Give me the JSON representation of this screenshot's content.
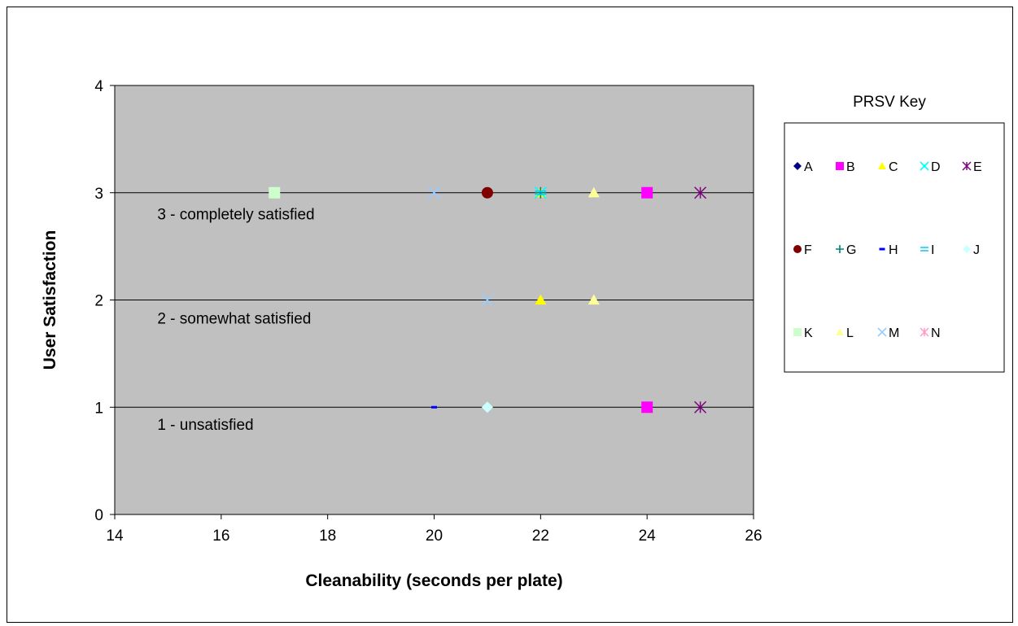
{
  "chart_data": {
    "type": "scatter",
    "title": "",
    "xlabel": "Cleanability (seconds per plate)",
    "ylabel": "User Satisfaction",
    "xlim": [
      14,
      26
    ],
    "ylim": [
      0,
      4
    ],
    "xticks": [
      14,
      16,
      18,
      20,
      22,
      24,
      26
    ],
    "yticks": [
      0,
      1,
      2,
      3,
      4
    ],
    "grid": "horizontal major",
    "plot_area_color": "#c0c0c0",
    "annotations": [
      {
        "text": "3 - completely satisfied",
        "x": 14.8,
        "y": 2.75
      },
      {
        "text": "2 - somewhat satisfied",
        "x": 14.8,
        "y": 1.78
      },
      {
        "text": "1 - unsatisfied",
        "x": 14.8,
        "y": 0.79
      }
    ],
    "legend": {
      "title": "PRSV Key",
      "placement": "right"
    },
    "series": [
      {
        "name": "A",
        "marker": "diamond",
        "color": "#000080",
        "points": []
      },
      {
        "name": "B",
        "marker": "square",
        "color": "#ff00ff",
        "points": [
          [
            24,
            3
          ],
          [
            24,
            1
          ]
        ]
      },
      {
        "name": "C",
        "marker": "triangle",
        "color": "#ffff00",
        "points": [
          [
            22,
            3
          ],
          [
            22,
            2
          ]
        ]
      },
      {
        "name": "D",
        "marker": "x",
        "color": "#00ffff",
        "points": [
          [
            22,
            3
          ]
        ]
      },
      {
        "name": "E",
        "marker": "asterisk",
        "color": "#800080",
        "points": [
          [
            25,
            3
          ],
          [
            25,
            1
          ]
        ]
      },
      {
        "name": "F",
        "marker": "circle",
        "color": "#800000",
        "points": [
          [
            21,
            3
          ]
        ]
      },
      {
        "name": "G",
        "marker": "plus",
        "color": "#008080",
        "points": [
          [
            22,
            3
          ]
        ]
      },
      {
        "name": "H",
        "marker": "dash",
        "color": "#0000ff",
        "points": [
          [
            20,
            1
          ]
        ]
      },
      {
        "name": "I",
        "marker": "double-dash",
        "color": "#00ccff",
        "points": [
          [
            22,
            3
          ]
        ]
      },
      {
        "name": "J",
        "marker": "diamond",
        "color": "#ccffff",
        "points": [
          [
            21,
            1
          ]
        ]
      },
      {
        "name": "K",
        "marker": "square",
        "color": "#ccffcc",
        "points": [
          [
            17,
            3
          ]
        ]
      },
      {
        "name": "L",
        "marker": "triangle",
        "color": "#ffff99",
        "points": [
          [
            23,
            3
          ],
          [
            23,
            2
          ]
        ]
      },
      {
        "name": "M",
        "marker": "x",
        "color": "#99ccff",
        "points": [
          [
            20,
            3
          ],
          [
            21,
            2
          ]
        ]
      },
      {
        "name": "N",
        "marker": "asterisk",
        "color": "#ff99cc",
        "points": []
      }
    ]
  }
}
